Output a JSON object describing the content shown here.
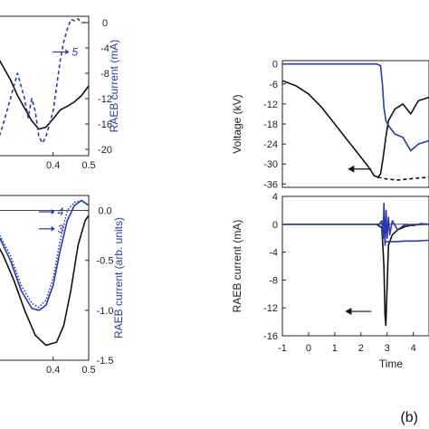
{
  "panel_label": "(b)",
  "colors": {
    "black": "#111111",
    "blue": "#2b3aa8"
  },
  "chart_data": [
    {
      "id": "left-top",
      "type": "line",
      "ylabel": "RAEB current (mA)",
      "xlim": [
        0.2,
        0.5
      ],
      "ylim": [
        -21,
        1
      ],
      "xticks": [
        "0.4",
        "0.5"
      ],
      "xtick_values": [
        0.4,
        0.5
      ],
      "yticks": [
        "0",
        "-4",
        "-8",
        "-12",
        "-16",
        "-20"
      ],
      "ytick_values": [
        0,
        -4,
        -8,
        -12,
        -16,
        -20
      ],
      "annotations": [
        {
          "text": "5",
          "x": 0.445,
          "y": -5.2
        }
      ],
      "series": [
        {
          "style": "solid",
          "color": "#111111",
          "x": [
            0.2,
            0.24,
            0.28,
            0.3,
            0.32,
            0.34,
            0.36,
            0.38,
            0.4,
            0.42,
            0.44,
            0.46,
            0.48,
            0.5
          ],
          "y": [
            -2,
            -5,
            -9,
            -11.5,
            -13.5,
            -15.5,
            -16.8,
            -16.5,
            -15.2,
            -13.8,
            -13.2,
            -12.5,
            -11.5,
            -10
          ]
        },
        {
          "style": "dashed",
          "color": "#2b3aa8",
          "x": [
            0.2,
            0.24,
            0.26,
            0.28,
            0.3,
            0.32,
            0.33,
            0.34,
            0.35,
            0.36,
            0.37,
            0.38,
            0.39,
            0.4,
            0.41,
            0.42,
            0.43,
            0.44,
            0.45,
            0.46,
            0.47,
            0.48,
            0.5
          ],
          "y": [
            -20,
            -19.5,
            -16,
            -12,
            -8,
            -12,
            -15,
            -12,
            -14,
            -18,
            -19,
            -18,
            -16,
            -14,
            -10,
            -6,
            -3,
            -1,
            0.5,
            0.3,
            0.6,
            0,
            0
          ]
        }
      ]
    },
    {
      "id": "left-bottom",
      "type": "line",
      "ylabel": "RAEB current (arb. units)",
      "xlim": [
        0.2,
        0.5
      ],
      "ylim": [
        -1.5,
        0.15
      ],
      "xticks": [
        "0.4",
        "0.5"
      ],
      "xtick_values": [
        0.4,
        0.5
      ],
      "yticks": [
        "0.0",
        "-0.5",
        "-1.0",
        "-1.5"
      ],
      "ytick_values": [
        0,
        -0.5,
        -1.0,
        -1.5
      ],
      "annotations": [
        {
          "text": "4",
          "x": 0.405,
          "y": -0.05
        },
        {
          "text": "3",
          "x": 0.405,
          "y": -0.22
        }
      ],
      "series": [
        {
          "style": "solid",
          "color": "#111111",
          "x": [
            0.2,
            0.23,
            0.26,
            0.29,
            0.32,
            0.35,
            0.38,
            0.41,
            0.43,
            0.45,
            0.47,
            0.49,
            0.5
          ],
          "y": [
            -0.15,
            -0.25,
            -0.45,
            -0.7,
            -1.0,
            -1.25,
            -1.35,
            -1.32,
            -1.15,
            -0.8,
            -0.35,
            -0.1,
            -0.05
          ]
        },
        {
          "style": "solid",
          "color": "#2b3aa8",
          "x": [
            0.2,
            0.24,
            0.28,
            0.31,
            0.34,
            0.36,
            0.38,
            0.4,
            0.42,
            0.44,
            0.46,
            0.48,
            0.5
          ],
          "y": [
            -0.1,
            -0.2,
            -0.5,
            -0.8,
            -0.98,
            -1.0,
            -0.95,
            -0.75,
            -0.4,
            -0.1,
            0.05,
            0.1,
            0.05
          ]
        },
        {
          "style": "dotted",
          "color": "#2b3aa8",
          "x": [
            0.2,
            0.24,
            0.28,
            0.31,
            0.34,
            0.36,
            0.38,
            0.4,
            0.42,
            0.44,
            0.46,
            0.48,
            0.5
          ],
          "y": [
            -0.08,
            -0.18,
            -0.45,
            -0.75,
            -0.93,
            -0.97,
            -0.9,
            -0.68,
            -0.3,
            0.0,
            0.08,
            0.1,
            0.05
          ]
        }
      ]
    },
    {
      "id": "right-top",
      "type": "line",
      "ylabel": "Voltage (kV)",
      "xlim": [
        -1,
        4.6
      ],
      "ylim": [
        -37,
        1
      ],
      "yticks": [
        "0",
        "-6",
        "-12",
        "-18",
        "-24",
        "-30",
        "-36"
      ],
      "ytick_values": [
        0,
        -6,
        -12,
        -18,
        -24,
        -30,
        -36
      ],
      "series": [
        {
          "style": "solid",
          "color": "#111111",
          "x": [
            -1,
            -0.5,
            0,
            0.5,
            1,
            1.5,
            2,
            2.3,
            2.5,
            2.65,
            2.75,
            2.85,
            2.95,
            3.05,
            3.3,
            3.6,
            3.9,
            4.2,
            4.6
          ],
          "y": [
            -5,
            -6.5,
            -9,
            -13,
            -18,
            -23,
            -28,
            -31,
            -33.5,
            -34,
            -33,
            -28,
            -22,
            -17,
            -13.5,
            -12,
            -15,
            -11,
            -10
          ]
        },
        {
          "style": "dashed",
          "color": "#111111",
          "x": [
            2.65,
            3.0,
            3.4,
            3.8,
            4.2,
            4.6
          ],
          "y": [
            -34,
            -34.5,
            -34.8,
            -34.5,
            -34.2,
            -34
          ]
        },
        {
          "style": "solid",
          "color": "#2b3aa8",
          "x": [
            -1,
            0,
            1,
            2,
            2.6,
            2.75,
            2.82,
            2.88,
            2.95,
            3.05,
            3.3,
            3.6,
            3.9,
            4.2,
            4.6
          ],
          "y": [
            0,
            0,
            0,
            0,
            0,
            -0.5,
            -6,
            -13,
            -17,
            -18.5,
            -21,
            -22,
            -26,
            -24,
            -23
          ]
        }
      ],
      "arrows": [
        {
          "x_from": 2.4,
          "x_to": 1.5,
          "y": -31.5
        }
      ]
    },
    {
      "id": "right-bottom",
      "type": "line",
      "ylabel": "RAEB current (mA)",
      "xlabel": "Time",
      "xlim": [
        -1,
        4.6
      ],
      "ylim": [
        -16,
        4
      ],
      "xticks": [
        "-1",
        "0",
        "1",
        "2",
        "3",
        "4"
      ],
      "xtick_values": [
        -1,
        0,
        1,
        2,
        3,
        4
      ],
      "yticks": [
        "4",
        "0",
        "-4",
        "-8",
        "-12",
        "-16"
      ],
      "ytick_values": [
        4,
        0,
        -4,
        -8,
        -12,
        -16
      ],
      "series": [
        {
          "style": "solid",
          "color": "#111111",
          "x": [
            -1,
            0,
            1,
            2,
            2.6,
            2.8,
            2.88,
            2.92,
            2.95,
            3.0,
            3.05,
            3.2,
            3.4,
            3.7,
            4.0,
            4.3,
            4.6
          ],
          "y": [
            0,
            0,
            0,
            0,
            0,
            -0.5,
            -6,
            -13,
            -14.5,
            -9,
            -3,
            -1.5,
            -0.8,
            -0.3,
            -0.1,
            0,
            0
          ]
        },
        {
          "style": "solid",
          "color": "#2b3aa8",
          "x": [
            -1,
            0,
            1,
            2,
            2.7,
            2.8,
            2.85,
            2.88,
            2.92,
            2.96,
            3.0,
            3.05,
            3.1,
            3.2,
            3.4,
            3.7,
            4.0,
            4.3,
            4.6
          ],
          "y": [
            0,
            0,
            0,
            0,
            0,
            0.5,
            -2,
            3,
            -3,
            2,
            -2,
            1,
            -1.5,
            0.5,
            -0.8,
            0,
            -0.2,
            0.1,
            0
          ]
        },
        {
          "style": "solid",
          "color": "#2b3aa8",
          "x": [
            2.9,
            3.3,
            3.7,
            4.1,
            4.6
          ],
          "y": [
            -2.5,
            -2.5,
            -2.4,
            -2.4,
            -2.3
          ]
        }
      ],
      "arrows": [
        {
          "x_from": 2.4,
          "x_to": 1.4,
          "y": -12.5
        }
      ]
    }
  ]
}
